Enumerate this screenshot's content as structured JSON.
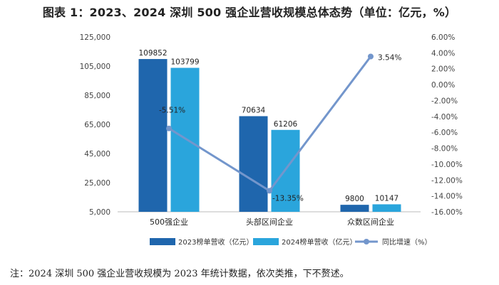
{
  "title": "图表 1：2023、2024 深圳 500 强企业营收规模总体态势（单位：亿元，%）",
  "note": "注：2024 深圳 500 强企业营收规模为 2023 年统计数据，依次类推，下不赘述。",
  "colors": {
    "series_2023": "#1f66ad",
    "series_2024": "#2aa5dc",
    "growth_line": "#7396cc"
  },
  "chart_data": {
    "type": "bar",
    "categories": [
      "500强企业",
      "头部区间企业",
      "众数区间企业"
    ],
    "series": [
      {
        "name": "2023榜单营收（亿元）",
        "type": "bar",
        "axis": "left",
        "values": [
          109852,
          70634,
          9800
        ],
        "labels": [
          "109852",
          "70634",
          "9800"
        ]
      },
      {
        "name": "2024榜单营收（亿元）",
        "type": "bar",
        "axis": "left",
        "values": [
          103799,
          61206,
          10147
        ],
        "labels": [
          "103799",
          "61206",
          "10147"
        ]
      },
      {
        "name": "同比增速（%）",
        "type": "line",
        "axis": "right",
        "values": [
          -5.51,
          -13.35,
          3.54
        ],
        "labels": [
          "-5.51%",
          "-13.35%",
          "3.54%"
        ]
      }
    ],
    "y_left": {
      "min": 5000,
      "max": 125000,
      "ticks": [
        5000,
        25000,
        45000,
        65000,
        85000,
        105000,
        125000
      ],
      "tick_labels": [
        "5,000",
        "25,000",
        "45,000",
        "65,000",
        "85,000",
        "105,000",
        "125,000"
      ]
    },
    "y_right": {
      "min": -16,
      "max": 6,
      "ticks": [
        6,
        4,
        2,
        0,
        -2,
        -4,
        -6,
        -8,
        -10,
        -12,
        -14,
        -16
      ],
      "tick_labels": [
        "6.00%",
        "4.00%",
        "2.00%",
        "0.00%",
        "-2.00%",
        "-4.00%",
        "-6.00%",
        "-8.00%",
        "-10.00%",
        "-12.00%",
        "-14.00%",
        "-16.00%"
      ]
    },
    "legend": [
      "2023榜单营收（亿元）",
      "2024榜单营收（亿元）",
      "同比增速（%）"
    ],
    "legend_position": "bottom"
  }
}
